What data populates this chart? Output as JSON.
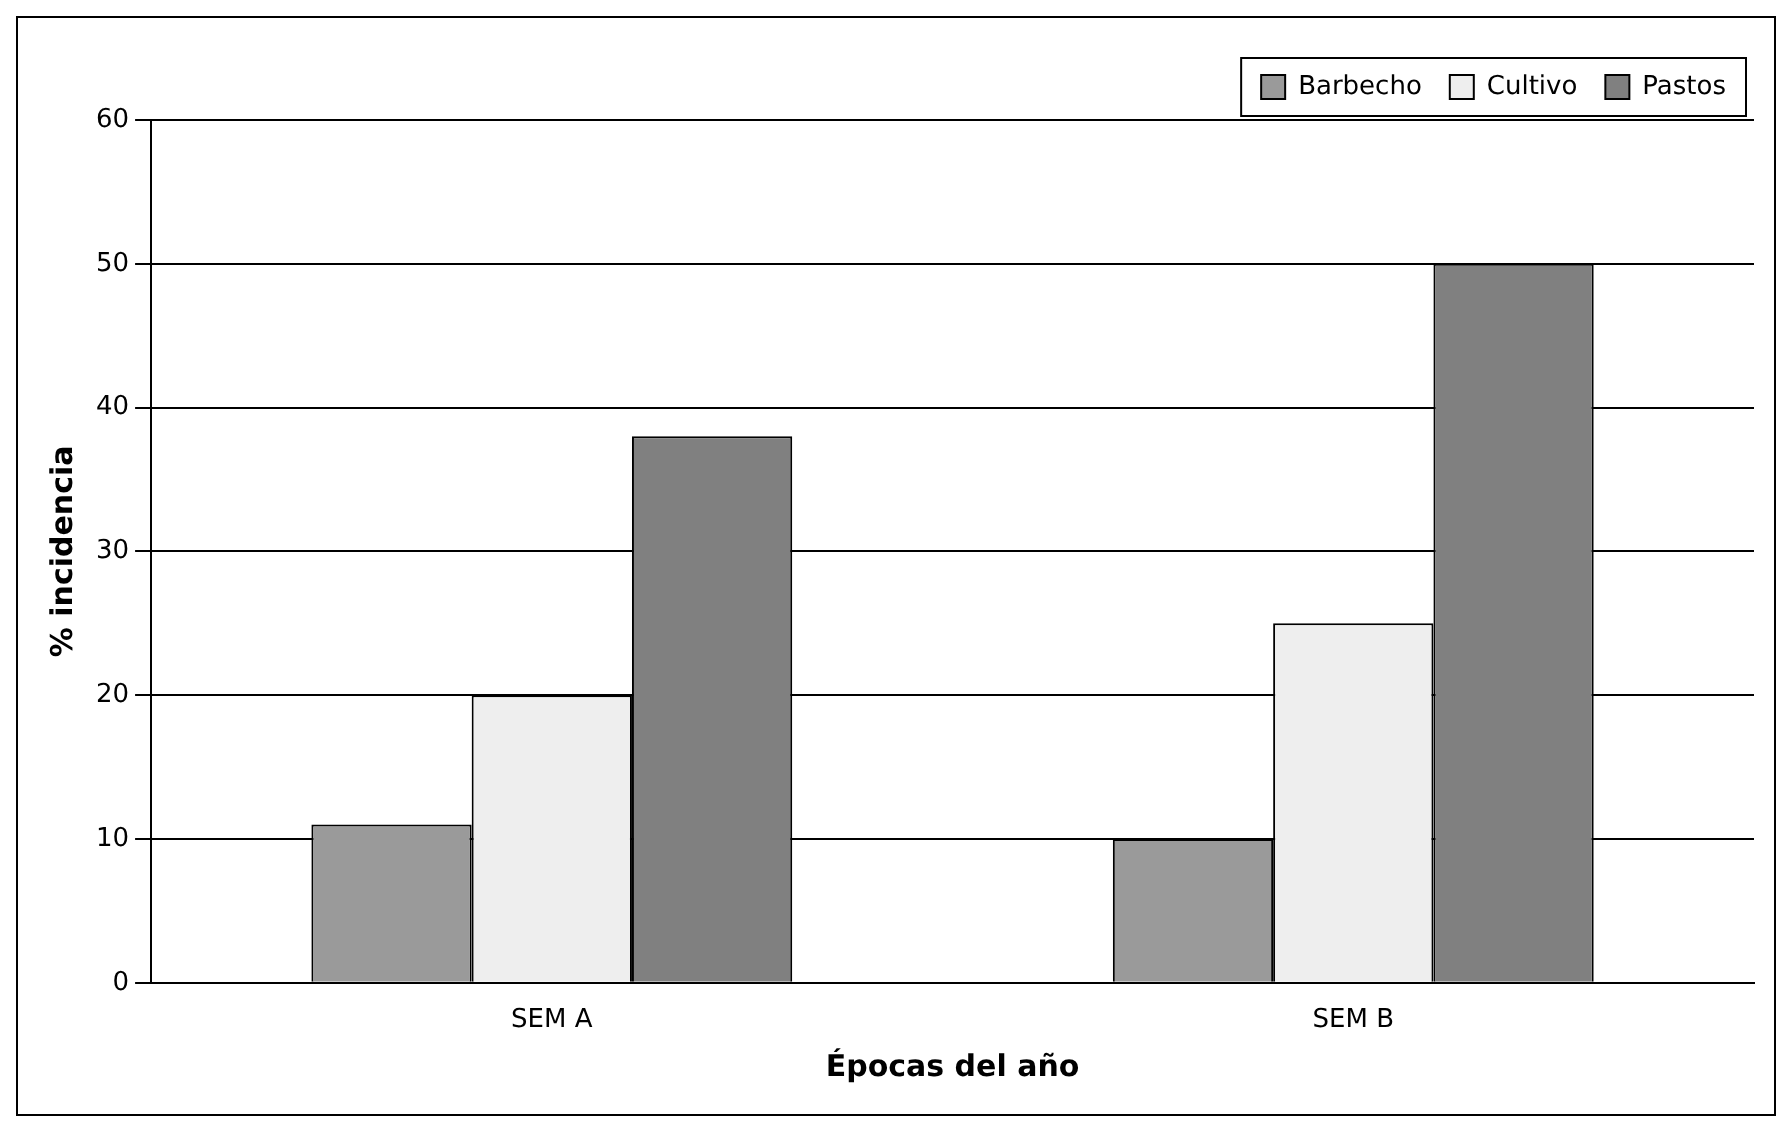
{
  "chart_data": {
    "type": "bar",
    "xlabel": "Épocas del año",
    "ylabel": "% incidencia",
    "categories": [
      "SEM A",
      "SEM B"
    ],
    "series": [
      {
        "name": "Barbecho",
        "color": "#9a9a9a",
        "values": [
          11,
          10
        ]
      },
      {
        "name": "Cultivo",
        "color": "#eeeeee",
        "values": [
          20,
          25
        ]
      },
      {
        "name": "Pastos",
        "color": "#808080",
        "values": [
          38,
          50
        ]
      }
    ],
    "ylim": [
      0,
      60
    ],
    "yticks": [
      0,
      10,
      20,
      30,
      40,
      50,
      60
    ],
    "grid": "y",
    "legend": "top right"
  }
}
